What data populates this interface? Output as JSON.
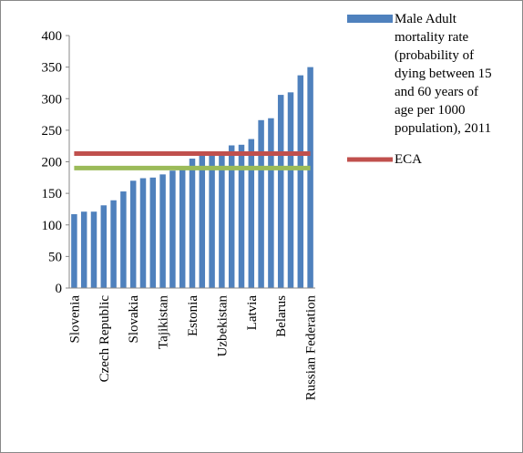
{
  "chart_data": {
    "type": "bar",
    "categories": [
      "Slovenia",
      null,
      null,
      "Czech Republic",
      null,
      null,
      "Slovakia",
      null,
      null,
      "Tajikistan",
      null,
      null,
      "Estonia",
      null,
      null,
      "Uzbekistan",
      null,
      null,
      "Latvia",
      null,
      null,
      "Belarus",
      null,
      null,
      "Russian Federation"
    ],
    "series": [
      {
        "name": "Male Adult mortality rate (probability of dying between 15 and 60 years of age per 1000 population), 2011",
        "type": "bar",
        "color": "#4f81bd",
        "values": [
          117,
          121,
          121,
          131,
          139,
          153,
          170,
          174,
          175,
          180,
          186,
          190,
          205,
          210,
          213,
          215,
          226,
          227,
          236,
          266,
          269,
          306,
          310,
          337,
          350
        ]
      },
      {
        "name": "ECA",
        "type": "line",
        "color": "#c0504d",
        "values": [
          213,
          213,
          213,
          213,
          213,
          213,
          213,
          213,
          213,
          213,
          213,
          213,
          213,
          213,
          213,
          213,
          213,
          213,
          213,
          213,
          213,
          213,
          213,
          213,
          213
        ]
      },
      {
        "type": "line",
        "color": "#9bbb59",
        "values": [
          190,
          190,
          190,
          190,
          190,
          190,
          190,
          190,
          190,
          190,
          190,
          190,
          190,
          190,
          190,
          190,
          190,
          190,
          190,
          190,
          190,
          190,
          190,
          190,
          190
        ]
      }
    ],
    "ylim": [
      0,
      400
    ],
    "yticks": [
      0,
      50,
      100,
      150,
      200,
      250,
      300,
      350,
      400
    ],
    "grid": false
  }
}
